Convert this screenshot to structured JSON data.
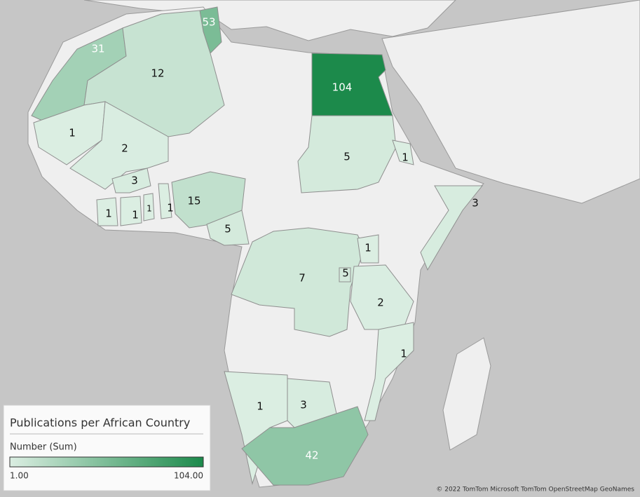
{
  "map": {
    "regions": [
      {
        "value": 53
      },
      {
        "value": 31
      },
      {
        "value": 12
      },
      {
        "value": 104
      },
      {
        "value": 1
      },
      {
        "value": 2
      },
      {
        "value": 3
      },
      {
        "value": 1
      },
      {
        "value": 1
      },
      {
        "value": 1
      },
      {
        "value": 1
      },
      {
        "value": 15
      },
      {
        "value": 5
      },
      {
        "value": 5
      },
      {
        "value": 1
      },
      {
        "value": 3
      },
      {
        "value": 7
      },
      {
        "value": 1
      },
      {
        "value": 5
      },
      {
        "value": 2
      },
      {
        "value": 1
      },
      {
        "value": 1
      },
      {
        "value": 3
      },
      {
        "value": 42
      }
    ],
    "legend": {
      "title": "Publications per African Country",
      "subtitle": "Number (Sum)",
      "min": {
        "value": 1,
        "label": "1.00"
      },
      "max": {
        "value": 104,
        "label": "104.00"
      },
      "min_color": "#dbeee2",
      "max_color": "#1c8a4b"
    },
    "attribution": "© 2022 TomTom  Microsoft  TomTom  OpenStreetMap  GeoNames"
  }
}
